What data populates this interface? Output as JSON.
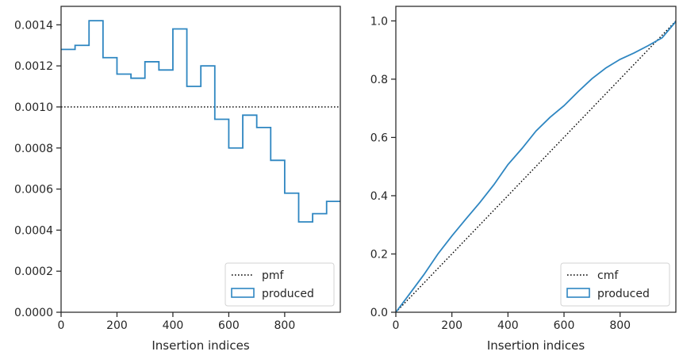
{
  "chart_data": [
    {
      "type": "line",
      "title": "",
      "xlabel": "Insertion indices",
      "ylabel": "",
      "xlim": [
        0,
        999
      ],
      "ylim": [
        0,
        0.00149
      ],
      "grid": false,
      "legend_placement": "lower-right",
      "xticks": [
        0,
        200,
        400,
        600,
        800
      ],
      "xtick_labels": [
        "0",
        "200",
        "400",
        "600",
        "800"
      ],
      "yticks": [
        0,
        0.0002,
        0.0004,
        0.0006,
        0.0008,
        0.001,
        0.0012,
        0.0014
      ],
      "ytick_labels": [
        "0.0000",
        "0.0002",
        "0.0004",
        "0.0006",
        "0.0008",
        "0.0010",
        "0.0012",
        "0.0014"
      ],
      "series": [
        {
          "name": "pmf",
          "style": "dotted",
          "color": "#000000",
          "x": [
            0,
            999
          ],
          "values": [
            0.001,
            0.001
          ]
        },
        {
          "name": "produced",
          "style": "step-histogram",
          "color": "#2e86c1",
          "bin_edges": [
            0,
            50,
            100,
            150,
            200,
            250,
            300,
            350,
            400,
            450,
            500,
            550,
            600,
            650,
            700,
            750,
            800,
            850,
            900,
            950,
            999
          ],
          "values": [
            0.00128,
            0.0013,
            0.00142,
            0.00124,
            0.00116,
            0.00114,
            0.00122,
            0.00118,
            0.00138,
            0.0011,
            0.0012,
            0.00094,
            0.0008,
            0.00096,
            0.0009,
            0.00074,
            0.00058,
            0.00044,
            0.00048,
            0.00054
          ]
        }
      ],
      "legend": [
        "pmf",
        "produced"
      ]
    },
    {
      "type": "line",
      "title": "",
      "xlabel": "Insertion indices",
      "ylabel": "",
      "xlim": [
        0,
        999
      ],
      "ylim": [
        0,
        1.05
      ],
      "grid": false,
      "legend_placement": "lower-right",
      "xticks": [
        0,
        200,
        400,
        600,
        800
      ],
      "xtick_labels": [
        "0",
        "200",
        "400",
        "600",
        "800"
      ],
      "yticks": [
        0.0,
        0.2,
        0.4,
        0.6,
        0.8,
        1.0
      ],
      "ytick_labels": [
        "0.0",
        "0.2",
        "0.4",
        "0.6",
        "0.8",
        "1.0"
      ],
      "series": [
        {
          "name": "cmf",
          "style": "dotted",
          "color": "#000000",
          "x": [
            0,
            999
          ],
          "values": [
            0.0,
            1.0
          ]
        },
        {
          "name": "produced",
          "style": "solid",
          "color": "#2e86c1",
          "x": [
            0,
            50,
            100,
            150,
            200,
            250,
            300,
            350,
            400,
            450,
            500,
            550,
            600,
            650,
            700,
            750,
            800,
            850,
            900,
            950,
            999
          ],
          "values": [
            0.0,
            0.064,
            0.129,
            0.2,
            0.262,
            0.32,
            0.377,
            0.438,
            0.507,
            0.562,
            0.622,
            0.669,
            0.709,
            0.757,
            0.802,
            0.839,
            0.868,
            0.89,
            0.915,
            0.942,
            0.998
          ]
        }
      ],
      "legend": [
        "cmf",
        "produced"
      ]
    }
  ]
}
